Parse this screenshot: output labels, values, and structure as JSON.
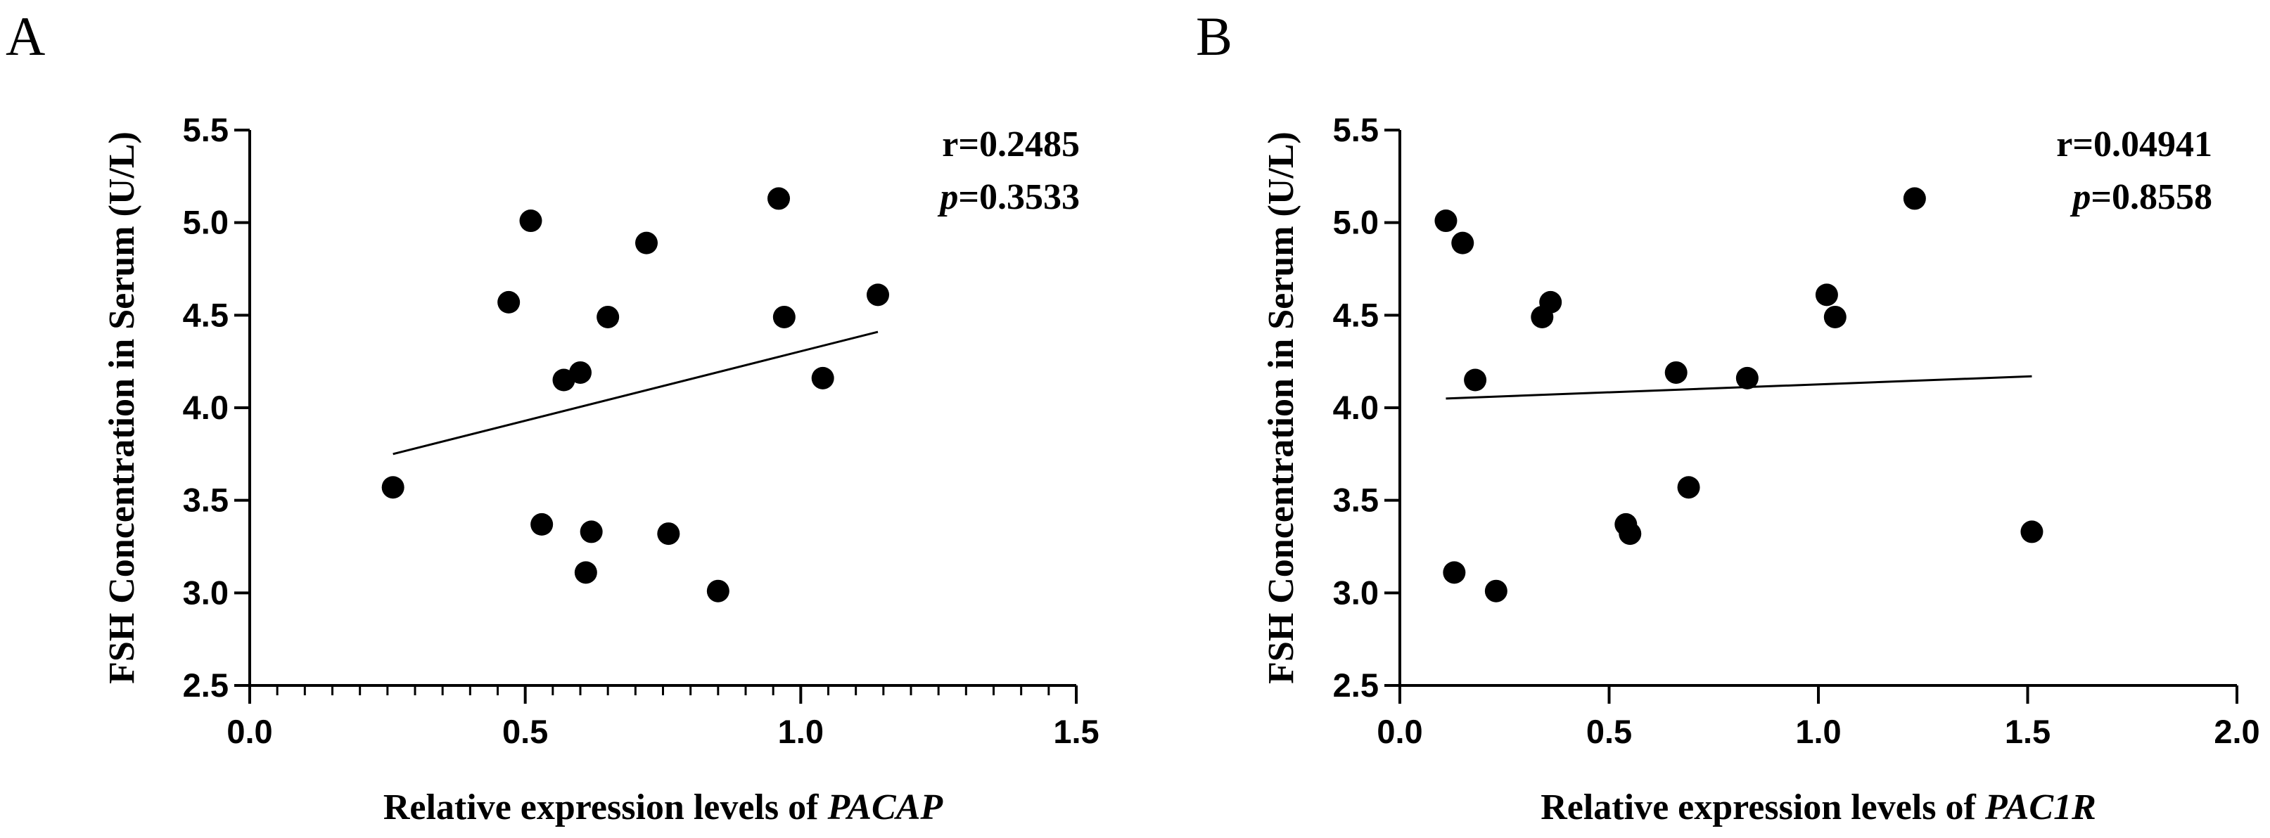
{
  "chart_data": [
    {
      "type": "scatter",
      "panel_label": "A",
      "ylabel": "FSH Concentration in Serum (U/L)",
      "xlabel_prefix": "Relative expression levels of ",
      "xlabel_gene": "PACAP",
      "xlim": [
        0.0,
        1.5
      ],
      "ylim": [
        2.5,
        5.5
      ],
      "x_ticks": [
        0.0,
        0.5,
        1.0,
        1.5
      ],
      "x_tick_labels": [
        "0.0",
        "0.5",
        "1.0",
        "1.5"
      ],
      "x_minor_step": 0.05,
      "y_ticks": [
        2.5,
        3.0,
        3.5,
        4.0,
        4.5,
        5.0,
        5.5
      ],
      "y_tick_labels": [
        "2.5",
        "3.0",
        "3.5",
        "4.0",
        "4.5",
        "5.0",
        "5.5"
      ],
      "stat_r": "r=0.2485",
      "stat_p_symbol": "p",
      "stat_p_value": "=0.3533",
      "points": [
        {
          "x": 0.26,
          "y": 3.57
        },
        {
          "x": 0.47,
          "y": 4.57
        },
        {
          "x": 0.51,
          "y": 5.01
        },
        {
          "x": 0.53,
          "y": 3.37
        },
        {
          "x": 0.57,
          "y": 4.15
        },
        {
          "x": 0.6,
          "y": 4.19
        },
        {
          "x": 0.61,
          "y": 3.11
        },
        {
          "x": 0.62,
          "y": 3.33
        },
        {
          "x": 0.65,
          "y": 4.49
        },
        {
          "x": 0.72,
          "y": 4.89
        },
        {
          "x": 0.76,
          "y": 3.32
        },
        {
          "x": 0.85,
          "y": 3.01
        },
        {
          "x": 0.96,
          "y": 5.13
        },
        {
          "x": 0.97,
          "y": 4.49
        },
        {
          "x": 1.04,
          "y": 4.16
        },
        {
          "x": 1.14,
          "y": 4.61
        }
      ],
      "fit_line": {
        "x": [
          0.26,
          1.14
        ],
        "y": [
          3.75,
          4.41
        ]
      }
    },
    {
      "type": "scatter",
      "panel_label": "B",
      "ylabel": "FSH Concentration in Serum (U/L)",
      "xlabel_prefix": "Relative expression levels of ",
      "xlabel_gene": "PAC1R",
      "xlim": [
        0.0,
        2.0
      ],
      "ylim": [
        2.5,
        5.5
      ],
      "x_ticks": [
        0.0,
        0.5,
        1.0,
        1.5,
        2.0
      ],
      "x_tick_labels": [
        "0.0",
        "0.5",
        "1.0",
        "1.5",
        "2.0"
      ],
      "x_minor_step": 0,
      "y_ticks": [
        2.5,
        3.0,
        3.5,
        4.0,
        4.5,
        5.0,
        5.5
      ],
      "y_tick_labels": [
        "2.5",
        "3.0",
        "3.5",
        "4.0",
        "4.5",
        "5.0",
        "5.5"
      ],
      "stat_r": "r=0.04941",
      "stat_p_symbol": "p",
      "stat_p_value": "=0.8558",
      "points": [
        {
          "x": 0.11,
          "y": 5.01
        },
        {
          "x": 0.13,
          "y": 3.11
        },
        {
          "x": 0.15,
          "y": 4.89
        },
        {
          "x": 0.18,
          "y": 4.15
        },
        {
          "x": 0.23,
          "y": 3.01
        },
        {
          "x": 0.34,
          "y": 4.49
        },
        {
          "x": 0.36,
          "y": 4.57
        },
        {
          "x": 0.54,
          "y": 3.37
        },
        {
          "x": 0.55,
          "y": 3.32
        },
        {
          "x": 0.66,
          "y": 4.19
        },
        {
          "x": 0.69,
          "y": 3.57
        },
        {
          "x": 0.83,
          "y": 4.16
        },
        {
          "x": 1.02,
          "y": 4.61
        },
        {
          "x": 1.04,
          "y": 4.49
        },
        {
          "x": 1.23,
          "y": 5.13
        },
        {
          "x": 1.51,
          "y": 3.33
        }
      ],
      "fit_line": {
        "x": [
          0.11,
          1.51
        ],
        "y": [
          4.05,
          4.17
        ]
      }
    }
  ]
}
